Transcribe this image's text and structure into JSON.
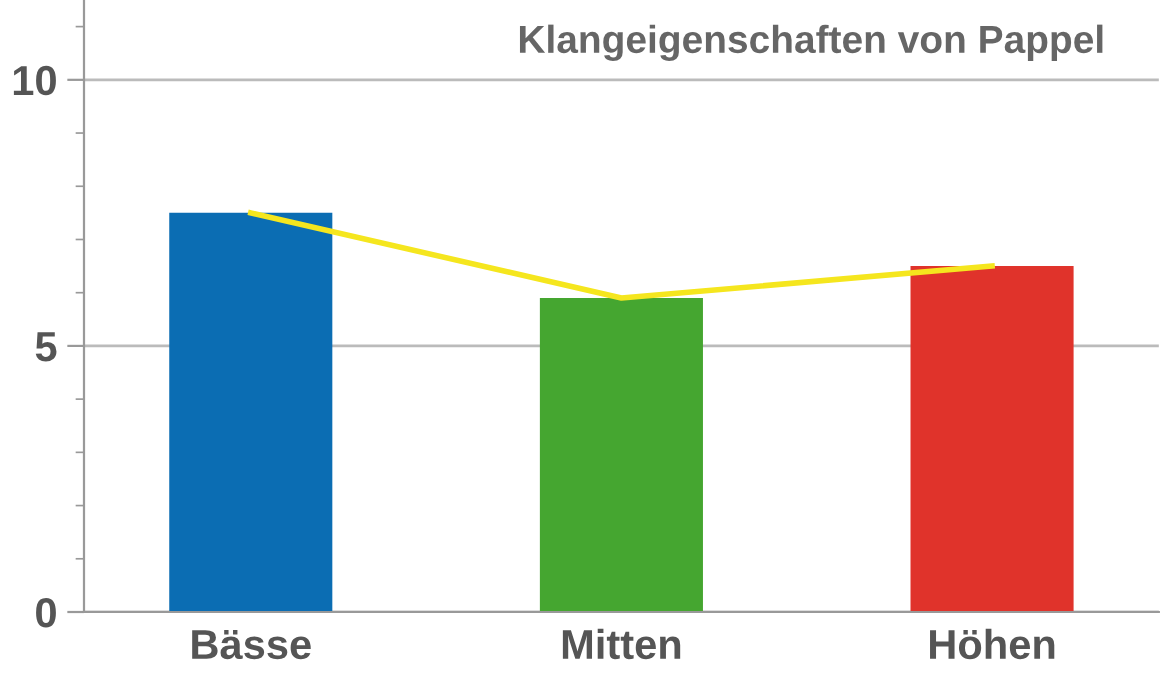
{
  "chart_data": {
    "type": "bar",
    "title": "Klangeigenschaften von Pappel",
    "categories": [
      "Bässe",
      "Mitten",
      "Höhen"
    ],
    "series": [
      {
        "colors": [
          "#0b6db3",
          "#45a630",
          "#e0332b"
        ],
        "values": [
          7.5,
          5.9,
          6.5
        ]
      },
      {
        "type": "line",
        "color": "#f5e61e",
        "values": [
          7.5,
          5.9,
          6.5
        ]
      }
    ],
    "ylim": [
      0,
      11.5
    ],
    "yticks": [
      0,
      5,
      10
    ],
    "grid": "y",
    "legend": false
  }
}
